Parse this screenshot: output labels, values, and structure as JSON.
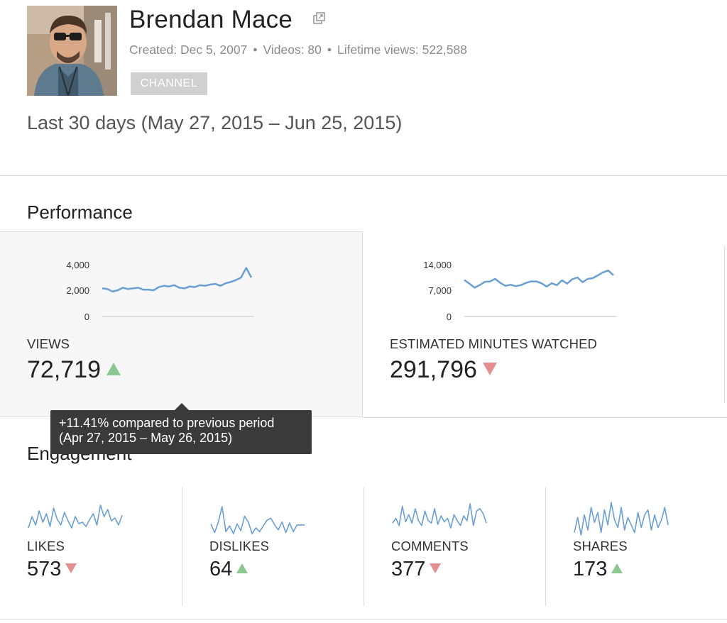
{
  "channel": {
    "name": "Brendan Mace",
    "created": "Created: Dec 5, 2007",
    "videos": "Videos: 80",
    "lifetime_views": "Lifetime views: 522,588",
    "badge": "CHANNEL",
    "external_link_icon": "external-link-icon"
  },
  "period": "Last 30 days (May 27, 2015 – Jun 25, 2015)",
  "performance": {
    "title": "Performance",
    "views": {
      "label": "VIEWS",
      "value": "72,719",
      "trend": "up",
      "ticks": [
        "4,000",
        "2,000",
        "0"
      ]
    },
    "minutes": {
      "label": "ESTIMATED MINUTES WATCHED",
      "value": "291,796",
      "trend": "down",
      "ticks": [
        "14,000",
        "7,000",
        "0"
      ]
    }
  },
  "tooltip": {
    "line1": "+11.41% compared to previous period",
    "line2": "(Apr 27, 2015 – May 26, 2015)"
  },
  "engagement": {
    "title": "Engagement",
    "likes": {
      "label": "LIKES",
      "value": "573",
      "trend": "down"
    },
    "dislikes": {
      "label": "DISLIKES",
      "value": "64",
      "trend": "up"
    },
    "comments": {
      "label": "COMMENTS",
      "value": "377",
      "trend": "down"
    },
    "shares": {
      "label": "SHARES",
      "value": "173",
      "trend": "up"
    }
  },
  "colors": {
    "line": "#6a9fd4",
    "up": "#8cc791",
    "down": "#e58f91",
    "tooltip_bg": "#3a3a3a"
  },
  "chart_data": [
    {
      "type": "line",
      "name": "views",
      "ylim": [
        0,
        4000
      ],
      "values": [
        2200,
        2150,
        1950,
        2050,
        2250,
        2150,
        2200,
        2250,
        2100,
        2100,
        2050,
        2300,
        2400,
        2350,
        2450,
        2250,
        2200,
        2350,
        2300,
        2450,
        2400,
        2500,
        2550,
        2400,
        2600,
        2700,
        2850,
        3050,
        3800,
        3050
      ]
    },
    {
      "type": "line",
      "name": "minutes",
      "ylim": [
        0,
        14000
      ],
      "values": [
        10000,
        9000,
        7900,
        8600,
        9500,
        9600,
        10300,
        9200,
        8400,
        8700,
        8300,
        8600,
        9200,
        9600,
        9600,
        9100,
        8200,
        9100,
        8600,
        9900,
        9000,
        10200,
        10700,
        9400,
        10300,
        10500,
        11300,
        12100,
        12600,
        11300
      ]
    },
    {
      "type": "line",
      "name": "likes",
      "values": [
        4,
        12,
        6,
        16,
        8,
        14,
        5,
        18,
        10,
        6,
        15,
        9,
        4,
        12,
        7,
        8,
        5,
        10,
        14,
        6,
        20,
        12,
        17,
        9,
        11,
        6,
        13
      ]
    },
    {
      "type": "line",
      "name": "dislikes",
      "values": [
        12,
        3,
        14,
        30,
        4,
        10,
        2,
        12,
        5,
        20,
        14,
        2,
        8,
        4,
        10,
        16,
        18,
        11,
        6,
        14,
        3,
        13,
        4,
        11,
        11,
        11
      ]
    },
    {
      "type": "line",
      "name": "comments",
      "values": [
        8,
        12,
        6,
        22,
        9,
        15,
        8,
        20,
        10,
        6,
        18,
        10,
        8,
        20,
        7,
        14,
        9,
        12,
        4,
        15,
        10,
        6,
        14,
        10,
        24,
        6,
        18,
        20,
        16,
        8
      ]
    },
    {
      "type": "line",
      "name": "shares",
      "values": [
        6,
        18,
        4,
        20,
        8,
        26,
        14,
        22,
        6,
        24,
        12,
        30,
        16,
        10,
        26,
        8,
        18,
        12,
        6,
        22,
        10,
        20,
        24,
        8,
        20,
        10,
        16,
        26,
        12
      ]
    }
  ]
}
